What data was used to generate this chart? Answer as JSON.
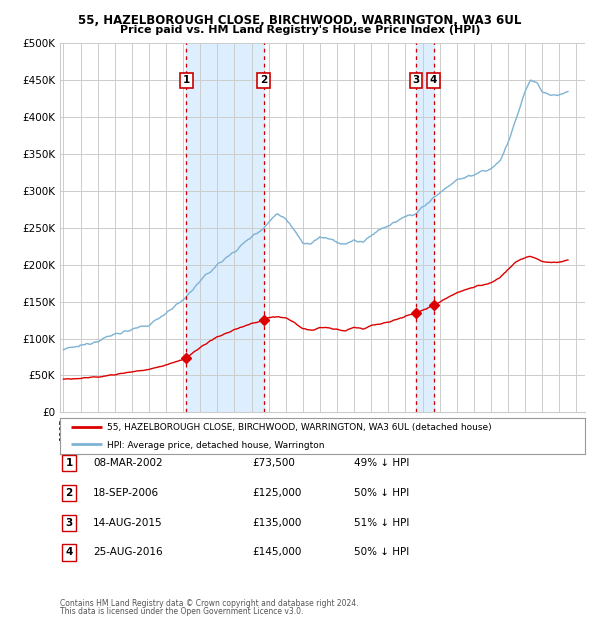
{
  "title": "55, HAZELBOROUGH CLOSE, BIRCHWOOD, WARRINGTON, WA3 6UL",
  "subtitle": "Price paid vs. HM Land Registry's House Price Index (HPI)",
  "ylabel_ticks": [
    0,
    50000,
    100000,
    150000,
    200000,
    250000,
    300000,
    350000,
    400000,
    450000,
    500000
  ],
  "ylim": [
    0,
    500000
  ],
  "xlim_start": 1994.8,
  "xlim_end": 2025.5,
  "sales": [
    {
      "num": 1,
      "date": "08-MAR-2002",
      "year": 2002.19,
      "price": 73500,
      "pct": "49% ↓ HPI"
    },
    {
      "num": 2,
      "date": "18-SEP-2006",
      "year": 2006.71,
      "price": 125000,
      "pct": "50% ↓ HPI"
    },
    {
      "num": 3,
      "date": "14-AUG-2015",
      "year": 2015.62,
      "price": 135000,
      "pct": "51% ↓ HPI"
    },
    {
      "num": 4,
      "date": "25-AUG-2016",
      "year": 2016.65,
      "price": 145000,
      "pct": "50% ↓ HPI"
    }
  ],
  "legend_line1": "55, HAZELBOROUGH CLOSE, BIRCHWOOD, WARRINGTON, WA3 6UL (detached house)",
  "legend_line2": "HPI: Average price, detached house, Warrington",
  "footer1": "Contains HM Land Registry data © Crown copyright and database right 2024.",
  "footer2": "This data is licensed under the Open Government Licence v3.0.",
  "red_color": "#dd0000",
  "blue_color": "#7fb3d3",
  "highlight_fill": "#ddeeff",
  "sale_box_color": "#cc0000",
  "grid_color": "#cccccc",
  "background_color": "#ffffff"
}
